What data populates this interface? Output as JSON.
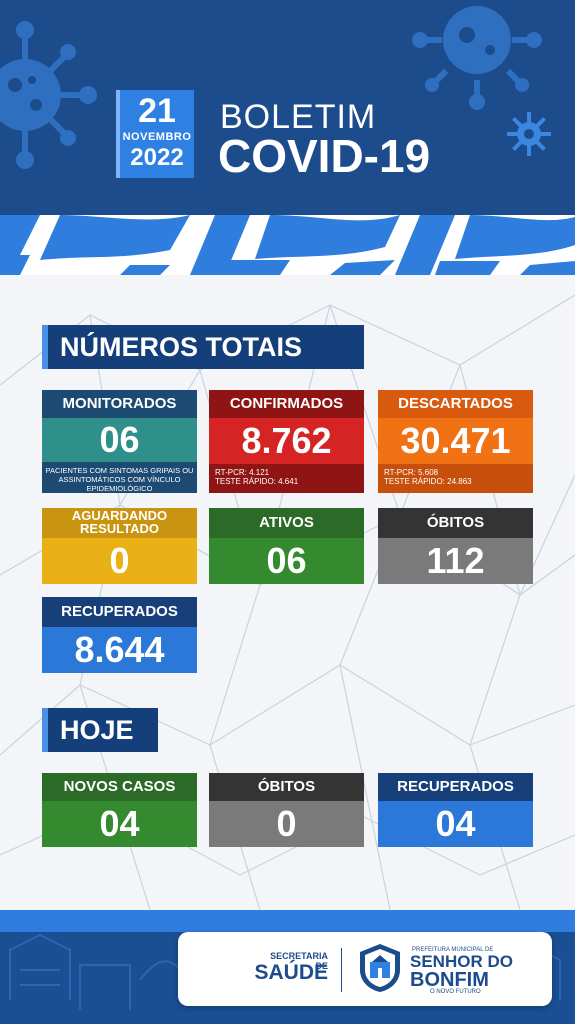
{
  "header": {
    "date_day": "21",
    "date_month": "NOVEMBRO",
    "date_year": "2022",
    "title_top": "BOLETIM",
    "title_main": "COVID-19"
  },
  "colors": {
    "header_blue": "#1d4c8c",
    "accent_blue": "#2f80e3",
    "teal": "#2f8f8a",
    "red": "#c4201d",
    "orange": "#ee6a12",
    "yellow": "#e9b115",
    "green": "#2f8a2f",
    "gray": "#7a7a7a",
    "blue": "#2c78d8"
  },
  "totals": {
    "heading": "NÚMEROS TOTAIS",
    "monitorados": {
      "label": "MONITORADOS",
      "value": "06",
      "note": "PACIENTES COM SINTOMAS GRIPAIS OU ASSINTOMÁTICOS COM VÍNCULO EPIDEMIOLÓGICO"
    },
    "confirmados": {
      "label": "CONFIRMADOS",
      "value": "8.762",
      "note_line1": "RT-PCR: 4.121",
      "note_line2": "TESTE RÁPIDO: 4.641"
    },
    "descartados": {
      "label": "DESCARTADOS",
      "value": "30.471",
      "note_line1": "RT-PCR: 5.608",
      "note_line2": "TESTE RÁPIDO: 24.863"
    },
    "aguardando": {
      "label_line1": "AGUARDANDO",
      "label_line2": "RESULTADO",
      "value": "0"
    },
    "ativos": {
      "label": "ATIVOS",
      "value": "06"
    },
    "obitos": {
      "label": "ÓBITOS",
      "value": "112"
    },
    "recuperados": {
      "label": "RECUPERADOS",
      "value": "8.644"
    }
  },
  "today": {
    "heading": "HOJE",
    "novos_casos": {
      "label": "NOVOS CASOS",
      "value": "04"
    },
    "obitos": {
      "label": "ÓBITOS",
      "value": "0"
    },
    "recuperados": {
      "label": "RECUPERADOS",
      "value": "04"
    }
  },
  "footer": {
    "secretaria_small": "SECRETARIA DE",
    "secretaria_big": "SAÚDE",
    "prefeitura_small": "PREFEITURA MUNICIPAL DE",
    "city_line1": "SENHOR DO",
    "city_line2": "BONFIM",
    "slogan": "O NOVO FUTURO"
  }
}
